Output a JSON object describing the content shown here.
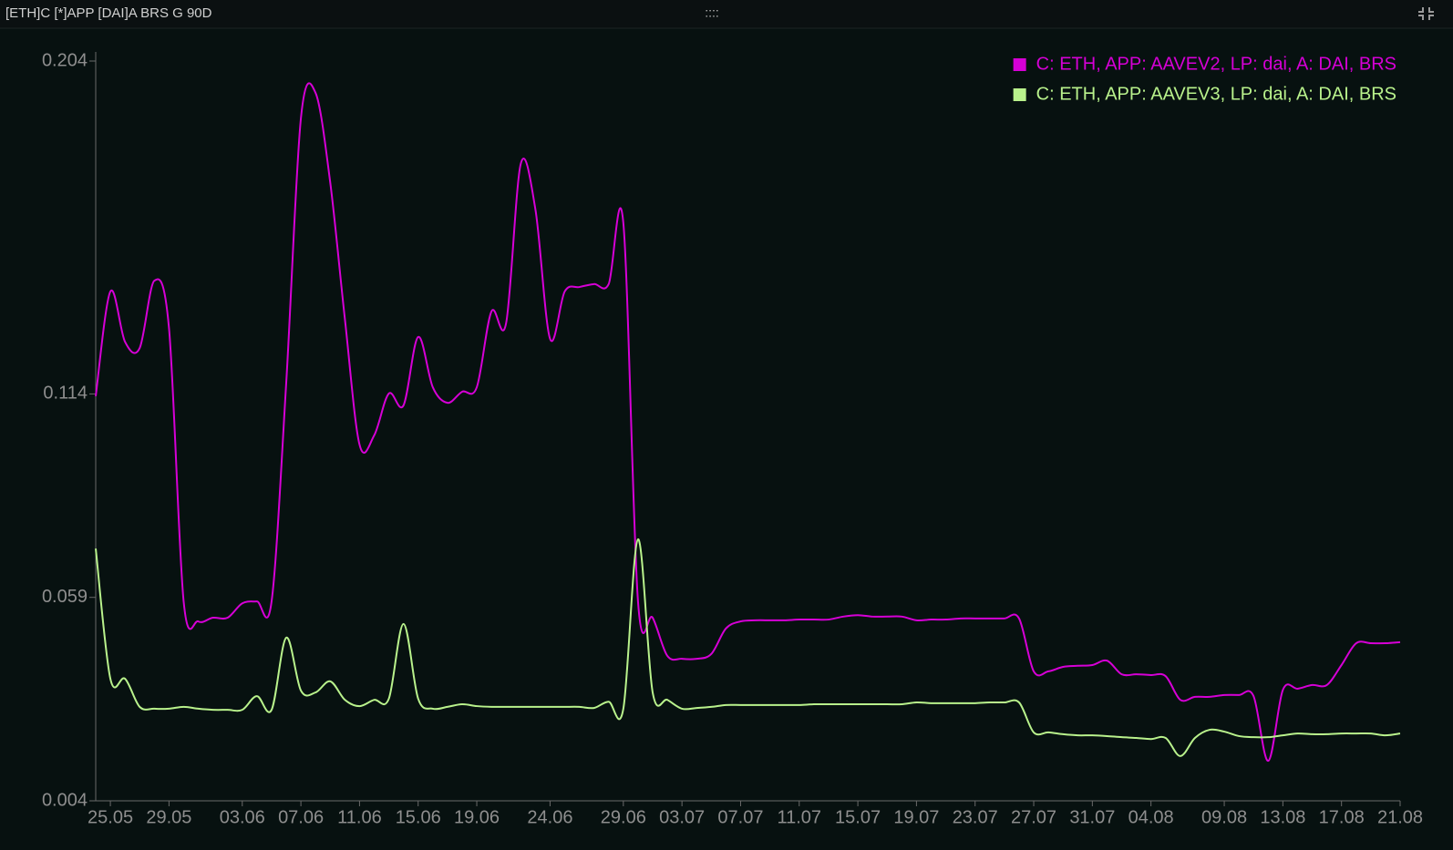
{
  "header": {
    "title": "[ETH]C [*]APP [DAI]A BRS G 90D",
    "handle": "::::"
  },
  "chart_data": {
    "type": "line",
    "categories": [
      null,
      "25.05",
      null,
      null,
      null,
      "29.05",
      null,
      null,
      null,
      null,
      "03.06",
      null,
      null,
      null,
      "07.06",
      null,
      null,
      null,
      "11.06",
      null,
      null,
      null,
      "15.06",
      null,
      null,
      null,
      "19.06",
      null,
      null,
      null,
      null,
      "24.06",
      null,
      null,
      null,
      null,
      "29.06",
      null,
      null,
      null,
      "03.07",
      null,
      null,
      null,
      "07.07",
      null,
      null,
      null,
      "11.07",
      null,
      null,
      null,
      "15.07",
      null,
      null,
      null,
      "19.07",
      null,
      null,
      null,
      "23.07",
      null,
      null,
      null,
      "27.07",
      null,
      null,
      null,
      "31.07",
      null,
      null,
      null,
      "04.08",
      null,
      null,
      null,
      null,
      "09.08",
      null,
      null,
      null,
      "13.08",
      null,
      null,
      null,
      "17.08",
      null,
      null,
      null,
      "21.08"
    ],
    "series": [
      {
        "name": "C: ETH, APP: AAVEV2, LP: dai, A: DAI, BRS",
        "color": "#d600d6",
        "values": [
          0.1134,
          0.1417,
          0.1281,
          0.1264,
          0.1446,
          0.1318,
          0.0579,
          0.0525,
          0.0535,
          0.0535,
          0.0574,
          0.0579,
          0.0579,
          0.1171,
          0.1885,
          0.1954,
          0.1712,
          0.1343,
          0.1003,
          0.1028,
          0.1141,
          0.1109,
          0.1294,
          0.1158,
          0.1116,
          0.1146,
          0.1158,
          0.1363,
          0.1331,
          0.1762,
          0.1639,
          0.1289,
          0.1417,
          0.1429,
          0.1437,
          0.1437,
          0.1602,
          0.0579,
          0.0535,
          0.0432,
          0.0424,
          0.0424,
          0.0437,
          0.0506,
          0.0525,
          0.0528,
          0.0528,
          0.0528,
          0.053,
          0.053,
          0.053,
          0.0538,
          0.0542,
          0.0538,
          0.0538,
          0.0538,
          0.0528,
          0.053,
          0.053,
          0.0533,
          0.0533,
          0.0533,
          0.0533,
          0.0533,
          0.039,
          0.039,
          0.0402,
          0.0405,
          0.0407,
          0.0419,
          0.0382,
          0.0382,
          0.038,
          0.0377,
          0.0313,
          0.0321,
          0.0321,
          0.0326,
          0.0326,
          0.0323,
          0.0148,
          0.034,
          0.0343,
          0.0353,
          0.0353,
          0.0407,
          0.0466,
          0.0466,
          0.0466,
          0.0469
        ]
      },
      {
        "name": "C: ETH, APP: AAVEV3, LP: dai, A: DAI, BRS",
        "color": "#b9f28c",
        "values": [
          0.0722,
          0.037,
          0.037,
          0.0294,
          0.0289,
          0.0289,
          0.0294,
          0.0289,
          0.0286,
          0.0286,
          0.0286,
          0.0323,
          0.0286,
          0.0481,
          0.0338,
          0.0333,
          0.0363,
          0.0313,
          0.0296,
          0.0313,
          0.0316,
          0.0518,
          0.0316,
          0.0289,
          0.0294,
          0.0301,
          0.0296,
          0.0294,
          0.0294,
          0.0294,
          0.0294,
          0.0294,
          0.0294,
          0.0294,
          0.0291,
          0.0308,
          0.0289,
          0.0747,
          0.0333,
          0.0313,
          0.0289,
          0.0291,
          0.0294,
          0.0299,
          0.0299,
          0.0299,
          0.0299,
          0.0299,
          0.0299,
          0.0301,
          0.0301,
          0.0301,
          0.0301,
          0.0301,
          0.0301,
          0.0301,
          0.0306,
          0.0304,
          0.0304,
          0.0304,
          0.0304,
          0.0306,
          0.0306,
          0.0306,
          0.0225,
          0.0225,
          0.022,
          0.0217,
          0.0217,
          0.0215,
          0.0212,
          0.021,
          0.0207,
          0.021,
          0.0161,
          0.021,
          0.0232,
          0.0227,
          0.0215,
          0.0212,
          0.0212,
          0.0217,
          0.0222,
          0.022,
          0.022,
          0.0222,
          0.0222,
          0.0222,
          0.0217,
          0.0222
        ]
      }
    ],
    "ylim": [
      0.004,
      0.204
    ],
    "yticks": [
      0.004,
      0.059,
      0.114,
      0.204
    ],
    "legend": "upper right"
  }
}
